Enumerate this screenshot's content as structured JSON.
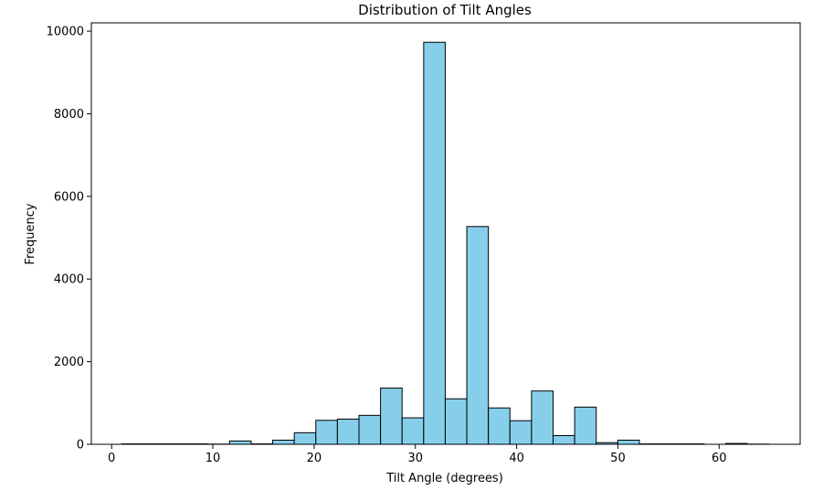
{
  "chart_data": {
    "type": "bar",
    "title": "Distribution of Tilt Angles",
    "xlabel": "Tilt Angle (degrees)",
    "ylabel": "Frequency",
    "xlim": [
      -2,
      68
    ],
    "ylim": [
      0,
      10200
    ],
    "xticks": [
      0,
      10,
      20,
      30,
      40,
      50,
      60
    ],
    "yticks": [
      0,
      2000,
      4000,
      6000,
      8000,
      10000
    ],
    "bin_start": 1.0,
    "bin_width": 2.13,
    "values": [
      10,
      10,
      10,
      10,
      5,
      80,
      10,
      100,
      280,
      580,
      610,
      700,
      1360,
      640,
      9730,
      1100,
      5270,
      880,
      570,
      1290,
      210,
      900,
      40,
      100,
      10,
      10,
      10,
      0,
      20,
      5
    ],
    "bar_color": "#87CEEB",
    "edge_color": "#000000",
    "grid": false
  }
}
